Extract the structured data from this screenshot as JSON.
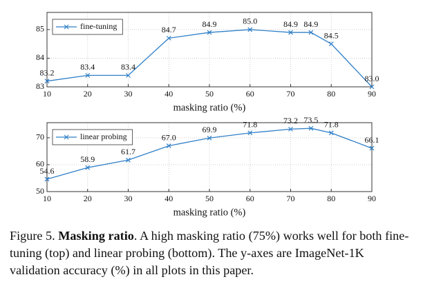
{
  "charts": [
    {
      "type": "line",
      "x": [
        10,
        20,
        30,
        40,
        50,
        60,
        70,
        75,
        80,
        90
      ],
      "series": [
        {
          "name": "fine-tuning",
          "color": "#2f7fc8",
          "values": [
            83.2,
            83.4,
            83.4,
            84.7,
            84.9,
            85.0,
            84.9,
            84.9,
            84.5,
            83.0
          ],
          "value_labels": [
            "83.2",
            "83.4",
            "83.4",
            "84.7",
            "84.9",
            "85.0",
            "84.9",
            "84.9",
            "84.5",
            "83.0"
          ]
        }
      ],
      "xlim": [
        10,
        90
      ],
      "xticks": [
        10,
        20,
        30,
        40,
        50,
        60,
        70,
        80,
        90
      ],
      "ylim": [
        83,
        85.6
      ],
      "yticks": [
        83,
        84,
        85
      ],
      "x_label": "masking ratio (%)",
      "grid": true,
      "legend": "upper left"
    },
    {
      "type": "line",
      "x": [
        10,
        20,
        30,
        40,
        50,
        60,
        70,
        75,
        80,
        90
      ],
      "series": [
        {
          "name": "linear probing",
          "color": "#2f7fc8",
          "values": [
            54.6,
            58.9,
            61.7,
            67.0,
            69.9,
            71.8,
            73.2,
            73.5,
            71.8,
            66.1
          ],
          "value_labels": [
            "54.6",
            "58.9",
            "61.7",
            "67.0",
            "69.9",
            "71.8",
            "73.2",
            "73.5",
            "71.8",
            "66.1"
          ]
        }
      ],
      "xlim": [
        10,
        90
      ],
      "xticks": [
        10,
        20,
        30,
        40,
        50,
        60,
        70,
        80,
        90
      ],
      "ylim": [
        50,
        75.6
      ],
      "yticks": [
        50,
        60,
        70
      ],
      "x_label": "masking ratio (%)",
      "grid": true,
      "legend": "upper left"
    }
  ],
  "caption": {
    "label": "Figure 5.",
    "bold": "Masking ratio",
    "text": ". A high masking ratio (75%) works well for both fine-tuning (top) and linear probing (bottom). The y-axes are ImageNet-1K validation accuracy (%) in all plots in this paper."
  }
}
